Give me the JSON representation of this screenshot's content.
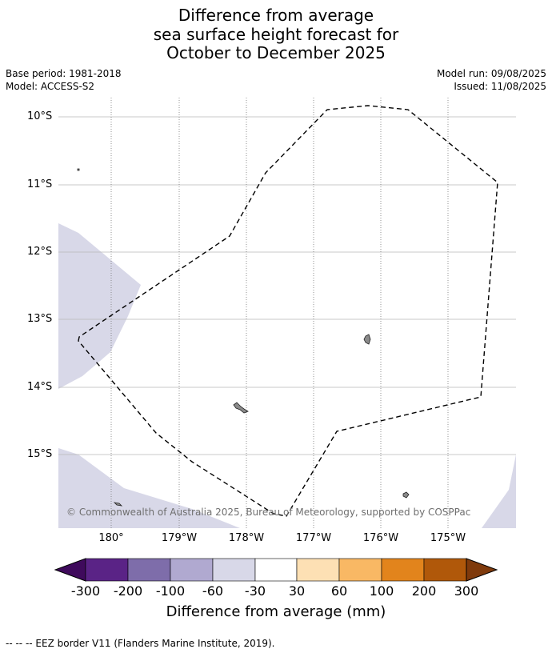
{
  "title_lines": [
    "Difference from average",
    "sea surface height forecast for",
    "October to December 2025"
  ],
  "meta_left": [
    "Base period: 1981-2018",
    "Model: ACCESS-S2"
  ],
  "meta_right": [
    "Model run: 09/08/2025",
    "Issued: 11/08/2025"
  ],
  "map": {
    "lat_labels": [
      "10°S",
      "11°S",
      "12°S",
      "13°S",
      "14°S",
      "15°S"
    ],
    "lon_labels": [
      "180°",
      "179°W",
      "178°W",
      "177°W",
      "176°W",
      "175°W"
    ],
    "credit": "© Commonwealth of Australia 2025, Bureau of Meteorology, supported by COSPPac",
    "anomaly_region_category": "-30 to -60",
    "anomaly_fill_color": "#d8d8e8",
    "eez_line_style": "dashed"
  },
  "colorbar": {
    "ticks": [
      "-300",
      "-200",
      "-100",
      "-60",
      "-30",
      "30",
      "60",
      "100",
      "200",
      "300"
    ],
    "colors": [
      "#3f0a5c",
      "#5a2386",
      "#7e6daa",
      "#b0a9d0",
      "#d8d8e8",
      "#ffffff",
      "#fde0b4",
      "#f9b864",
      "#e2841c",
      "#b0580a",
      "#7f3a0c"
    ],
    "title": "Difference from average (mm)"
  },
  "footer": "--  --  -- EEZ border V11 (Flanders Marine Institute, 2019)."
}
